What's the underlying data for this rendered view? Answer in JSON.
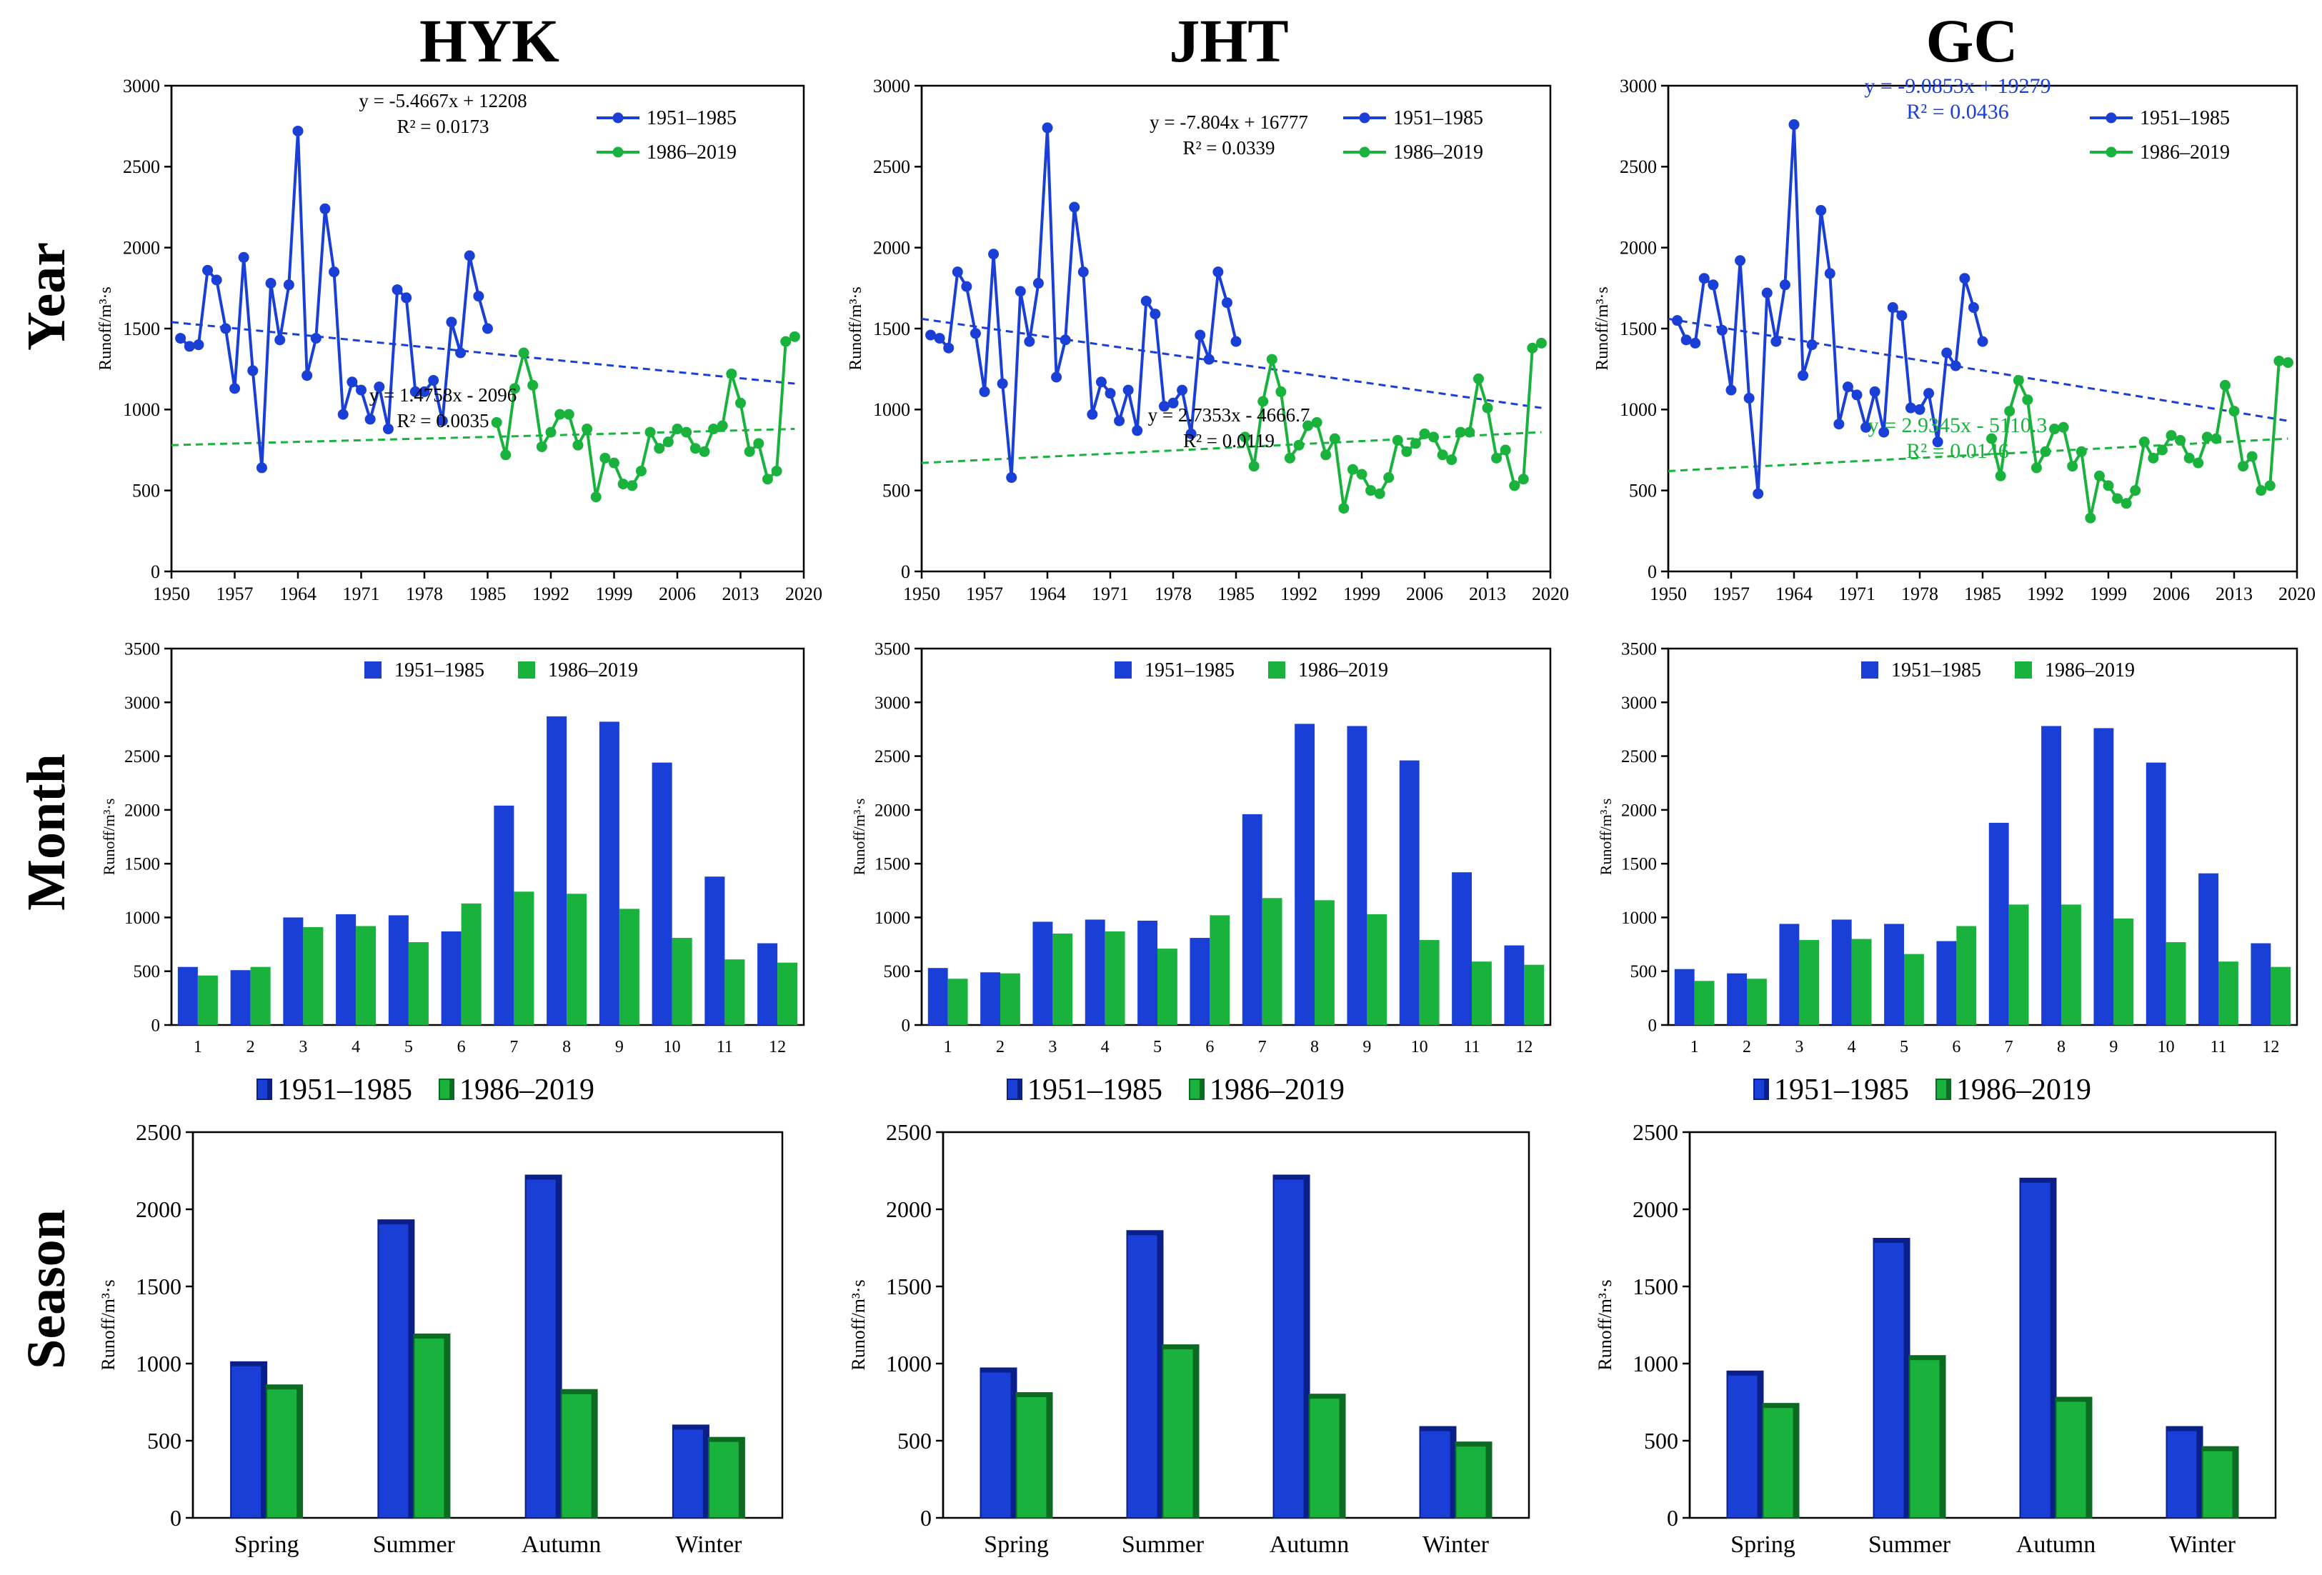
{
  "figure": {
    "columns": [
      "HYK",
      "JHT",
      "GC"
    ],
    "rows": [
      "Year",
      "Month",
      "Season"
    ],
    "colors": {
      "period1": "#1a3fd6",
      "period2": "#19b23c",
      "period1_dark": "#0a1f8a",
      "period2_dark": "#0b6b22",
      "axis": "#000000"
    }
  },
  "chart_data": [
    {
      "id": "year-HYK",
      "type": "line",
      "row": "Year",
      "station": "HYK",
      "ylabel": "Runoff/m³·s",
      "ylim": [
        0,
        3000
      ],
      "yticks": [
        0,
        500,
        1000,
        1500,
        2000,
        2500,
        3000
      ],
      "xlim": [
        1950,
        2020
      ],
      "xticks": [
        1950,
        1957,
        1964,
        1971,
        1978,
        1985,
        1992,
        1999,
        2006,
        2013,
        2020
      ],
      "series": [
        {
          "name": "1951–1985",
          "x0": 1951,
          "values": [
            1440,
            1390,
            1400,
            1860,
            1800,
            1500,
            1130,
            1940,
            1240,
            640,
            1780,
            1430,
            1770,
            2720,
            1210,
            1440,
            2240,
            1850,
            970,
            1170,
            1120,
            940,
            1140,
            880,
            1740,
            1690,
            1110,
            1110,
            1180,
            930,
            1540,
            1350,
            1950,
            1700,
            1500
          ]
        },
        {
          "name": "1986–2019",
          "x0": 1986,
          "values": [
            920,
            720,
            1130,
            1350,
            1150,
            770,
            860,
            970,
            970,
            780,
            880,
            460,
            700,
            670,
            540,
            530,
            620,
            860,
            760,
            800,
            880,
            860,
            760,
            740,
            880,
            900,
            1220,
            1040,
            740,
            790,
            570,
            620,
            1420,
            1450
          ]
        }
      ],
      "trendlines": [
        {
          "series": "1951–1985",
          "equation": "y = -5.4667x + 12208",
          "r2": "R² = 0.0173",
          "y_start": 1540,
          "y_end": 1160
        },
        {
          "series": "1986–2019",
          "equation": "y = 1.4758x - 2096",
          "r2": "R² = 0.0035",
          "y_start": 780,
          "y_end": 880
        }
      ]
    },
    {
      "id": "year-JHT",
      "type": "line",
      "row": "Year",
      "station": "JHT",
      "ylabel": "Runoff/m³·s",
      "ylim": [
        0,
        3000
      ],
      "yticks": [
        0,
        500,
        1000,
        1500,
        2000,
        2500,
        3000
      ],
      "xlim": [
        1950,
        2020
      ],
      "xticks": [
        1950,
        1957,
        1964,
        1971,
        1978,
        1985,
        1992,
        1999,
        2006,
        2013,
        2020
      ],
      "series": [
        {
          "name": "1951–1985",
          "x0": 1951,
          "values": [
            1460,
            1440,
            1380,
            1850,
            1760,
            1470,
            1110,
            1960,
            1160,
            580,
            1730,
            1420,
            1780,
            2740,
            1200,
            1430,
            2250,
            1850,
            970,
            1170,
            1100,
            930,
            1120,
            870,
            1670,
            1590,
            1020,
            1040,
            1120,
            850,
            1460,
            1310,
            1850,
            1660,
            1420
          ]
        },
        {
          "name": "1986–2019",
          "x0": 1986,
          "values": [
            830,
            650,
            1050,
            1310,
            1110,
            700,
            780,
            900,
            920,
            720,
            820,
            390,
            630,
            600,
            500,
            480,
            580,
            810,
            740,
            790,
            850,
            830,
            720,
            690,
            860,
            860,
            1190,
            1010,
            700,
            750,
            530,
            570,
            1380,
            1410
          ]
        }
      ],
      "trendlines": [
        {
          "series": "1951–1985",
          "equation": "y = -7.804x + 16777",
          "r2": "R² = 0.0339",
          "y_start": 1560,
          "y_end": 1010
        },
        {
          "series": "1986–2019",
          "equation": "y = 2.7353x - 4666.7",
          "r2": "R² = 0.0119",
          "y_start": 670,
          "y_end": 860
        }
      ]
    },
    {
      "id": "year-GC",
      "type": "line",
      "row": "Year",
      "station": "GC",
      "ylabel": "Runoff/m³·s",
      "ylim": [
        0,
        3000
      ],
      "yticks": [
        0,
        500,
        1000,
        1500,
        2000,
        2500,
        3000
      ],
      "xlim": [
        1950,
        2020
      ],
      "xticks": [
        1950,
        1957,
        1964,
        1971,
        1978,
        1985,
        1992,
        1999,
        2006,
        2013,
        2020
      ],
      "series": [
        {
          "name": "1951–1985",
          "x0": 1951,
          "values": [
            1550,
            1430,
            1410,
            1810,
            1770,
            1490,
            1120,
            1920,
            1070,
            480,
            1720,
            1420,
            1770,
            2760,
            1210,
            1400,
            2230,
            1840,
            910,
            1140,
            1090,
            890,
            1110,
            860,
            1630,
            1580,
            1010,
            1000,
            1100,
            800,
            1350,
            1270,
            1810,
            1630,
            1420
          ]
        },
        {
          "name": "1986–2019",
          "x0": 1986,
          "values": [
            820,
            590,
            990,
            1180,
            1060,
            640,
            740,
            880,
            890,
            650,
            740,
            330,
            590,
            530,
            450,
            420,
            500,
            800,
            700,
            750,
            840,
            810,
            700,
            670,
            830,
            820,
            1150,
            990,
            650,
            710,
            500,
            530,
            1300,
            1290
          ]
        }
      ],
      "trendlines": [
        {
          "series": "1951–1985",
          "equation": "y = -9.0853x + 19279",
          "r2": "R² = 0.0436",
          "y_start": 1560,
          "y_end": 930
        },
        {
          "series": "1986–2019",
          "equation": "y = 2.9345x - 5110.3",
          "r2": "R² = 0.0146",
          "y_start": 620,
          "y_end": 820
        }
      ]
    },
    {
      "id": "month-HYK",
      "type": "bar",
      "row": "Month",
      "station": "HYK",
      "ylabel": "Runoff/m³·s",
      "ylim": [
        0,
        3500
      ],
      "yticks": [
        0,
        500,
        1000,
        1500,
        2000,
        2500,
        3000,
        3500
      ],
      "categories": [
        "1",
        "2",
        "3",
        "4",
        "5",
        "6",
        "7",
        "8",
        "9",
        "10",
        "11",
        "12"
      ],
      "series": [
        {
          "name": "1951–1985",
          "values": [
            540,
            510,
            1000,
            1030,
            1020,
            870,
            2040,
            2870,
            2820,
            2440,
            1380,
            760
          ]
        },
        {
          "name": "1986–2019",
          "values": [
            460,
            540,
            910,
            920,
            770,
            1130,
            1240,
            1220,
            1080,
            810,
            610,
            580
          ]
        }
      ]
    },
    {
      "id": "month-JHT",
      "type": "bar",
      "row": "Month",
      "station": "JHT",
      "ylabel": "Runoff/m³·s",
      "ylim": [
        0,
        3500
      ],
      "yticks": [
        0,
        500,
        1000,
        1500,
        2000,
        2500,
        3000,
        3500
      ],
      "categories": [
        "1",
        "2",
        "3",
        "4",
        "5",
        "6",
        "7",
        "8",
        "9",
        "10",
        "11",
        "12"
      ],
      "series": [
        {
          "name": "1951–1985",
          "values": [
            530,
            490,
            960,
            980,
            970,
            810,
            1960,
            2800,
            2780,
            2460,
            1420,
            740
          ]
        },
        {
          "name": "1986–2019",
          "values": [
            430,
            480,
            850,
            870,
            710,
            1020,
            1180,
            1160,
            1030,
            790,
            590,
            560
          ]
        }
      ]
    },
    {
      "id": "month-GC",
      "type": "bar",
      "row": "Month",
      "station": "GC",
      "ylabel": "Runoff/m³·s",
      "ylim": [
        0,
        3500
      ],
      "yticks": [
        0,
        500,
        1000,
        1500,
        2000,
        2500,
        3000,
        3500
      ],
      "categories": [
        "1",
        "2",
        "3",
        "4",
        "5",
        "6",
        "7",
        "8",
        "9",
        "10",
        "11",
        "12"
      ],
      "series": [
        {
          "name": "1951–1985",
          "values": [
            520,
            480,
            940,
            980,
            940,
            780,
            1880,
            2780,
            2760,
            2440,
            1410,
            760
          ]
        },
        {
          "name": "1986–2019",
          "values": [
            410,
            430,
            790,
            800,
            660,
            920,
            1120,
            1120,
            990,
            770,
            590,
            540
          ]
        }
      ]
    },
    {
      "id": "season-HYK",
      "type": "bar",
      "row": "Season",
      "station": "HYK",
      "ylabel": "Runoff/m³·s",
      "ylim": [
        0,
        2500
      ],
      "yticks": [
        0,
        500,
        1000,
        1500,
        2000,
        2500
      ],
      "categories": [
        "Spring",
        "Summer",
        "Autumn",
        "Winter"
      ],
      "series": [
        {
          "name": "1951–1985",
          "values": [
            1010,
            1930,
            2220,
            600
          ]
        },
        {
          "name": "1986–2019",
          "values": [
            860,
            1190,
            830,
            520
          ]
        }
      ]
    },
    {
      "id": "season-JHT",
      "type": "bar",
      "row": "Season",
      "station": "JHT",
      "ylabel": "Runoff/m³·s",
      "ylim": [
        0,
        2500
      ],
      "yticks": [
        0,
        500,
        1000,
        1500,
        2000,
        2500
      ],
      "categories": [
        "Spring",
        "Summer",
        "Autumn",
        "Winter"
      ],
      "series": [
        {
          "name": "1951–1985",
          "values": [
            970,
            1860,
            2220,
            590
          ]
        },
        {
          "name": "1986–2019",
          "values": [
            810,
            1120,
            800,
            490
          ]
        }
      ]
    },
    {
      "id": "season-GC",
      "type": "bar",
      "row": "Season",
      "station": "GC",
      "ylabel": "Runoff/m³·s",
      "ylim": [
        0,
        2500
      ],
      "yticks": [
        0,
        500,
        1000,
        1500,
        2000,
        2500
      ],
      "categories": [
        "Spring",
        "Summer",
        "Autumn",
        "Winter"
      ],
      "series": [
        {
          "name": "1951–1985",
          "values": [
            950,
            1810,
            2200,
            590
          ]
        },
        {
          "name": "1986–2019",
          "values": [
            740,
            1050,
            780,
            460
          ]
        }
      ]
    }
  ]
}
